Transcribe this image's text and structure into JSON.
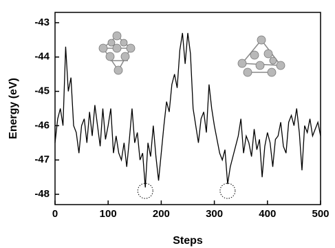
{
  "chart_data": {
    "type": "line",
    "x_label": "Steps",
    "y_label": "Energy (eV)",
    "x": [
      0,
      5,
      10,
      15,
      20,
      25,
      30,
      35,
      40,
      45,
      50,
      55,
      60,
      65,
      70,
      75,
      80,
      85,
      90,
      95,
      100,
      105,
      110,
      115,
      120,
      125,
      130,
      135,
      140,
      145,
      150,
      155,
      160,
      165,
      170,
      175,
      180,
      185,
      190,
      195,
      200,
      205,
      210,
      215,
      220,
      225,
      230,
      235,
      240,
      245,
      250,
      255,
      260,
      265,
      270,
      275,
      280,
      285,
      290,
      295,
      300,
      305,
      310,
      315,
      320,
      325,
      330,
      335,
      340,
      345,
      350,
      355,
      360,
      365,
      370,
      375,
      380,
      385,
      390,
      395,
      400,
      405,
      410,
      415,
      420,
      425,
      430,
      435,
      440,
      445,
      450,
      455,
      460,
      465,
      470,
      475,
      480,
      485,
      490,
      495,
      500
    ],
    "series": [
      {
        "color": "#000000",
        "values": [
          -46.5,
          -45.8,
          -45.5,
          -46,
          -43.7,
          -45,
          -44.6,
          -46,
          -46.2,
          -46.8,
          -46,
          -45.8,
          -46.5,
          -45.6,
          -46.3,
          -45.4,
          -46,
          -46.6,
          -45.5,
          -46.4,
          -46,
          -45.5,
          -46.8,
          -46.3,
          -46.8,
          -47,
          -46.5,
          -47.2,
          -46.4,
          -45.5,
          -46.5,
          -46.2,
          -47,
          -46.8,
          -47.8,
          -46.5,
          -46.9,
          -46,
          -46.9,
          -47.6,
          -46.8,
          -46,
          -45.3,
          -45.6,
          -44.8,
          -44.5,
          -44.9,
          -43.8,
          -43.3,
          -44.2,
          -43.3,
          -43.9,
          -45.5,
          -46,
          -46.5,
          -45.8,
          -45.6,
          -46.2,
          -44.8,
          -45.5,
          -46,
          -46.4,
          -46.8,
          -47,
          -46.7,
          -47.7,
          -47.2,
          -46.9,
          -46.6,
          -46.3,
          -45.8,
          -46.8,
          -46.3,
          -46.5,
          -46.9,
          -46.1,
          -46.7,
          -46.4,
          -47.5,
          -46.6,
          -46.2,
          -46.5,
          -47.2,
          -46.4,
          -46.3,
          -45.9,
          -46.6,
          -46.8,
          -45.9,
          -45.7,
          -46,
          -45.5,
          -46.2,
          -47.3,
          -46,
          -46.2,
          -45.8,
          -46.3,
          -46.1,
          -45.9,
          -46.3
        ]
      }
    ],
    "markers": [
      {
        "x": 170,
        "y": -47.9
      },
      {
        "x": 325,
        "y": -47.9
      }
    ],
    "xlim": [
      0,
      500
    ],
    "xticks": [
      0,
      100,
      200,
      300,
      400,
      500
    ],
    "ylim": [
      -48.3,
      -42.7
    ],
    "yticks": [
      -48,
      -47,
      -46,
      -45,
      -44,
      -43
    ]
  }
}
